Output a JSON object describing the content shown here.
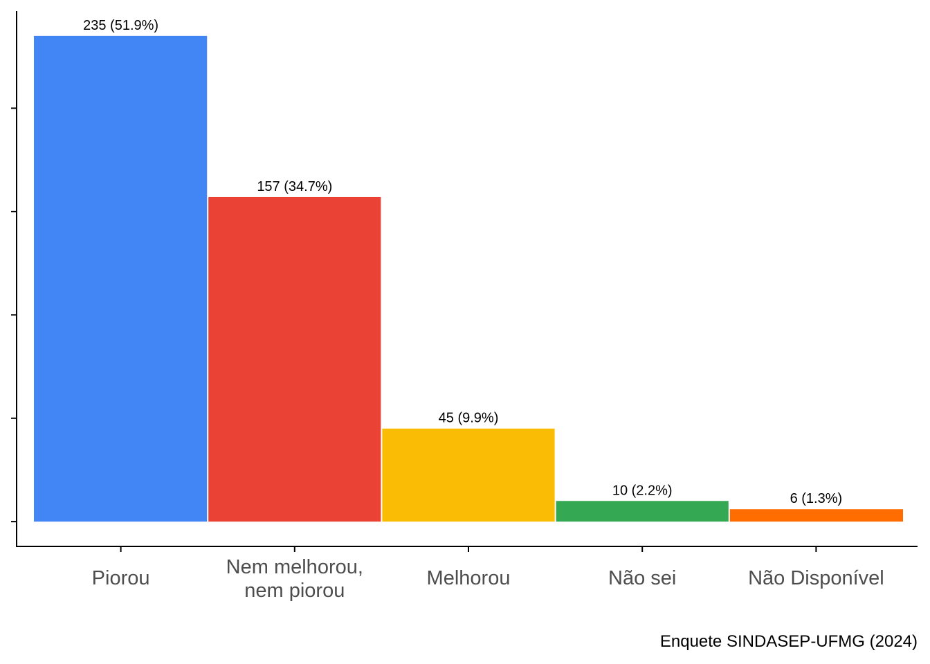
{
  "chart_data": {
    "type": "bar",
    "categories": [
      "Piorou",
      "Nem melhorou, nem piorou",
      "Melhorou",
      "Não sei",
      "Não Disponível"
    ],
    "category_lines": [
      [
        "Piorou"
      ],
      [
        "Nem melhorou,",
        "nem piorou"
      ],
      [
        "Melhorou"
      ],
      [
        "Não sei"
      ],
      [
        "Não Disponível"
      ]
    ],
    "values": [
      235,
      157,
      45,
      10,
      6
    ],
    "data_labels": [
      "235 (51.9%)",
      "157 (34.7%)",
      "45 (9.9%)",
      "10 (2.2%)",
      "6 (1.3%)"
    ],
    "colors": [
      "#4285F4",
      "#EA4335",
      "#FBBC05",
      "#34A853",
      "#FF6D00"
    ],
    "title": "",
    "xlabel": "",
    "ylabel": "",
    "ylim": [
      -12,
      247
    ],
    "yticks": [
      0,
      50,
      100,
      150,
      200
    ],
    "y_tick_labels_shown": false,
    "grid": false,
    "legend": "none"
  },
  "caption": "Enquete SINDASEP-UFMG (2024)"
}
